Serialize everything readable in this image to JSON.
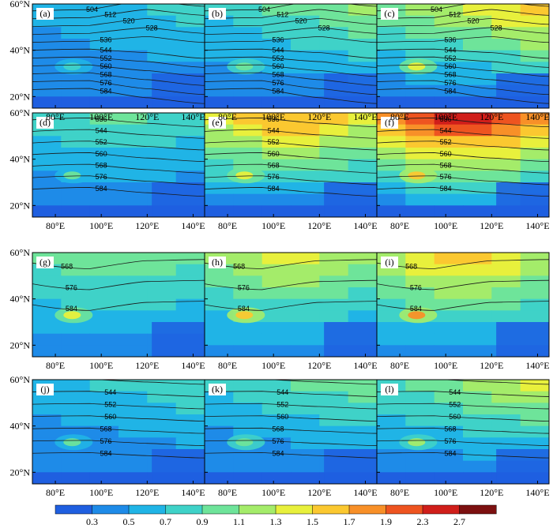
{
  "chart_data": {
    "type": "heatmap",
    "title": "",
    "panels": [
      {
        "letter": "(a)",
        "intensity": 0.25
      },
      {
        "letter": "(b)",
        "intensity": 0.45
      },
      {
        "letter": "(c)",
        "intensity": 0.7
      },
      {
        "letter": "(d)",
        "intensity": 0.35
      },
      {
        "letter": "(e)",
        "intensity": 0.75
      },
      {
        "letter": "(f)",
        "intensity": 1.0
      },
      {
        "letter": "(g)",
        "intensity": 0.35
      },
      {
        "letter": "(h)",
        "intensity": 0.5
      },
      {
        "letter": "(i)",
        "intensity": 0.6
      },
      {
        "letter": "(j)",
        "intensity": 0.3
      },
      {
        "letter": "(k)",
        "intensity": 0.4
      },
      {
        "letter": "(l)",
        "intensity": 0.55
      }
    ],
    "x_ticks": [
      "80°E",
      "100°E",
      "120°E",
      "140°E"
    ],
    "x_tick_values": [
      80,
      100,
      120,
      140
    ],
    "y_ticks": [
      "60°N",
      "40°N",
      "20°N"
    ],
    "y_tick_values": [
      60,
      40,
      20
    ],
    "xlim": [
      70,
      145
    ],
    "ylim": [
      15,
      60
    ],
    "contours_by_row": [
      {
        "levels": [
          "504",
          "512",
          "520",
          "528",
          "536",
          "544",
          "552",
          "560",
          "568",
          "576",
          "584"
        ]
      },
      {
        "levels": [
          "536",
          "544",
          "552",
          "560",
          "568",
          "576",
          "584"
        ]
      },
      {
        "levels": [
          "568",
          "576",
          "584"
        ]
      },
      {
        "levels": [
          "536",
          "544",
          "552",
          "560",
          "568",
          "576",
          "584"
        ]
      }
    ],
    "colorbar": {
      "labels": [
        "0.3",
        "0.5",
        "0.7",
        "0.9",
        "1.1",
        "1.3",
        "1.5",
        "1.7",
        "1.9",
        "2.3",
        "2.7"
      ],
      "colors": [
        "#1f5fe0",
        "#1e8be8",
        "#20b4e6",
        "#3fd2c8",
        "#6ee49a",
        "#a4ec6a",
        "#e8f03c",
        "#fbc830",
        "#f89028",
        "#ee5420",
        "#d01e1a",
        "#7c1010"
      ]
    }
  }
}
